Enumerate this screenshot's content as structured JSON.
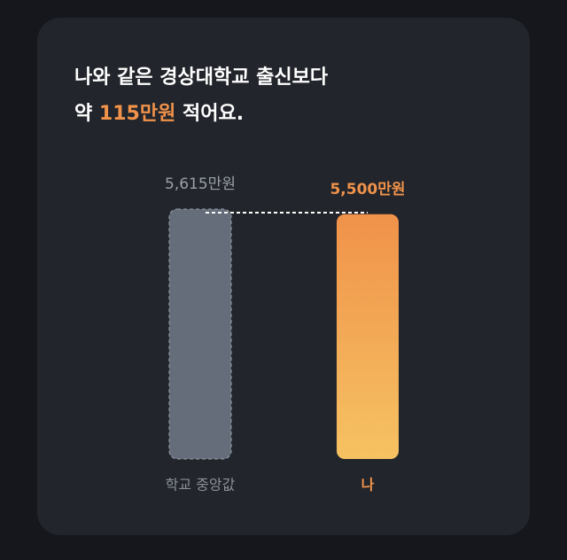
{
  "chart_data": {
    "type": "bar",
    "title": [
      "나와 같은 경상대학교 출신보다",
      "약",
      "115만원",
      "적어요."
    ],
    "categories": [
      "학교 중앙값",
      "나"
    ],
    "values": [
      5615,
      5500
    ],
    "value_labels": [
      "5,615만원",
      "5,500만원"
    ],
    "colors": [
      "#656d7a",
      "#f0924a"
    ],
    "highlight_color": "#f0924a"
  }
}
